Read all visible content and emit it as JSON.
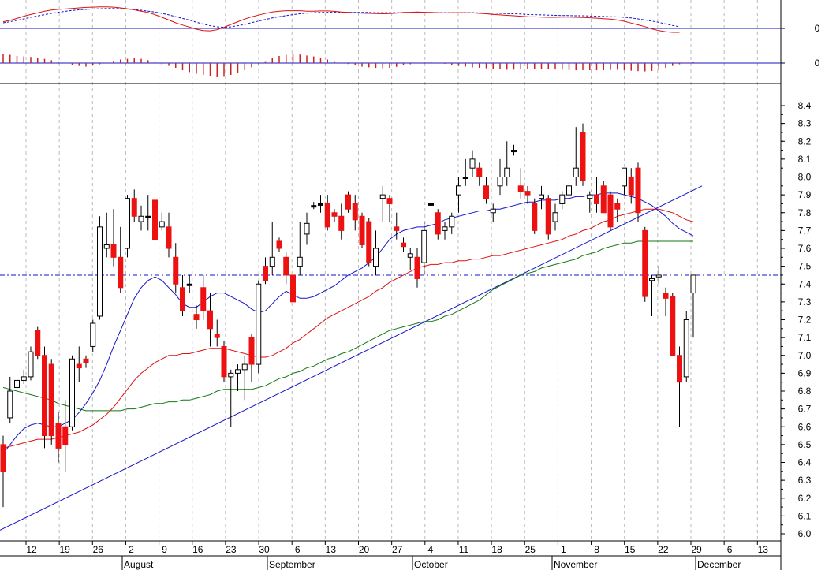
{
  "chart_data": {
    "type": "candlestick",
    "title": "",
    "colors": {
      "up_candle": "#ffffff",
      "down_candle": "#ee1111",
      "flat_candle": "#000000",
      "ma_short": "#1515c8",
      "ma_mid": "#dd1111",
      "ma_long": "#117711",
      "trendline": "#1515c8",
      "signal_line": "#1515c8",
      "macd_line": "#dd1111",
      "macd_signal": "#1515c8",
      "histogram": "#cc2222",
      "grid": "#bbbbbb"
    },
    "y_axis": {
      "ticks": [
        "6.0",
        "6.1",
        "6.2",
        "6.3",
        "6.4",
        "6.5",
        "6.6",
        "6.7",
        "6.8",
        "6.9",
        "7.0",
        "7.1",
        "7.2",
        "7.3",
        "7.4",
        "7.5",
        "7.6",
        "7.7",
        "7.8",
        "7.9",
        "8.0",
        "8.1",
        "8.2",
        "8.3",
        "8.4"
      ],
      "range": [
        5.95,
        8.45
      ]
    },
    "macd_axis_label": "0",
    "histogram_axis_label": "0",
    "x_axis": {
      "day_ticks": [
        "12",
        "19",
        "26",
        "2",
        "9",
        "16",
        "23",
        "30",
        "6",
        "13",
        "20",
        "27",
        "4",
        "11",
        "18",
        "25",
        "1",
        "8",
        "15",
        "22",
        "29",
        "6",
        "13"
      ],
      "month_labels": [
        "August",
        "September",
        "October",
        "November",
        "December"
      ]
    },
    "horizontal_level": 7.45,
    "trendline": {
      "start": 6.02,
      "end": 7.95
    },
    "candles": [
      [
        6.5,
        6.55,
        6.15,
        6.35
      ],
      [
        6.65,
        6.88,
        6.62,
        6.8
      ],
      [
        6.82,
        6.9,
        6.78,
        6.86
      ],
      [
        6.86,
        6.92,
        6.84,
        6.88
      ],
      [
        6.88,
        7.05,
        6.86,
        7.02
      ],
      [
        7.14,
        7.16,
        6.98,
        7.0
      ],
      [
        7.0,
        7.05,
        6.48,
        6.55
      ],
      [
        6.95,
        6.98,
        6.5,
        6.55
      ],
      [
        6.62,
        6.68,
        6.4,
        6.48
      ],
      [
        6.6,
        6.75,
        6.35,
        6.5
      ],
      [
        6.6,
        7.0,
        6.58,
        6.98
      ],
      [
        6.95,
        7.05,
        6.85,
        6.93
      ],
      [
        6.98,
        7.0,
        6.93,
        6.96
      ],
      [
        7.05,
        7.2,
        7.02,
        7.18
      ],
      [
        7.22,
        7.78,
        7.2,
        7.72
      ],
      [
        7.6,
        7.8,
        7.55,
        7.62
      ],
      [
        7.62,
        7.82,
        7.5,
        7.55
      ],
      [
        7.55,
        7.72,
        7.35,
        7.38
      ],
      [
        7.6,
        7.9,
        7.55,
        7.88
      ],
      [
        7.88,
        7.93,
        7.75,
        7.78
      ],
      [
        7.75,
        7.84,
        7.7,
        7.78
      ],
      [
        7.78,
        7.9,
        7.7,
        7.78
      ],
      [
        7.87,
        7.92,
        7.6,
        7.65
      ],
      [
        7.72,
        7.8,
        7.7,
        7.75
      ],
      [
        7.72,
        7.8,
        7.55,
        7.6
      ],
      [
        7.55,
        7.63,
        7.35,
        7.4
      ],
      [
        7.38,
        7.45,
        7.22,
        7.25
      ],
      [
        7.4,
        7.45,
        7.35,
        7.4
      ],
      [
        7.23,
        7.28,
        7.15,
        7.2
      ],
      [
        7.38,
        7.45,
        7.2,
        7.25
      ],
      [
        7.25,
        7.35,
        7.05,
        7.15
      ],
      [
        7.12,
        7.2,
        7.05,
        7.1
      ],
      [
        7.05,
        7.08,
        6.85,
        6.88
      ],
      [
        6.88,
        6.92,
        6.6,
        6.9
      ],
      [
        6.9,
        6.95,
        6.8,
        6.92
      ],
      [
        6.92,
        7.0,
        6.75,
        6.95
      ],
      [
        7.1,
        7.12,
        6.85,
        6.95
      ],
      [
        6.95,
        7.42,
        6.9,
        7.4
      ],
      [
        7.5,
        7.55,
        7.4,
        7.42
      ],
      [
        7.5,
        7.75,
        7.45,
        7.55
      ],
      [
        7.64,
        7.66,
        7.58,
        7.6
      ],
      [
        7.55,
        7.58,
        7.4,
        7.45
      ],
      [
        7.45,
        7.52,
        7.25,
        7.3
      ],
      [
        7.5,
        7.75,
        7.45,
        7.55
      ],
      [
        7.68,
        7.8,
        7.62,
        7.74
      ],
      [
        7.84,
        7.86,
        7.82,
        7.84
      ],
      [
        7.85,
        7.9,
        7.8,
        7.85
      ],
      [
        7.85,
        7.9,
        7.7,
        7.72
      ],
      [
        7.8,
        7.82,
        7.75,
        7.78
      ],
      [
        7.78,
        7.85,
        7.65,
        7.7
      ],
      [
        7.9,
        7.92,
        7.8,
        7.82
      ],
      [
        7.85,
        7.9,
        7.7,
        7.76
      ],
      [
        7.78,
        7.8,
        7.6,
        7.62
      ],
      [
        7.75,
        7.77,
        7.5,
        7.52
      ],
      [
        7.5,
        7.7,
        7.45,
        7.6
      ],
      [
        7.88,
        7.95,
        7.75,
        7.9
      ],
      [
        7.88,
        7.9,
        7.75,
        7.85
      ],
      [
        7.72,
        7.8,
        7.65,
        7.7
      ],
      [
        7.63,
        7.66,
        7.58,
        7.61
      ],
      [
        7.55,
        7.6,
        7.48,
        7.57
      ],
      [
        7.55,
        7.6,
        7.38,
        7.43
      ],
      [
        7.52,
        7.75,
        7.45,
        7.7
      ],
      [
        7.85,
        7.88,
        7.82,
        7.85
      ],
      [
        7.8,
        7.82,
        7.65,
        7.68
      ],
      [
        7.7,
        7.75,
        7.65,
        7.72
      ],
      [
        7.72,
        7.8,
        7.68,
        7.78
      ],
      [
        7.9,
        8.0,
        7.8,
        7.95
      ],
      [
        8.0,
        8.1,
        7.95,
        8.0
      ],
      [
        8.05,
        8.15,
        8.0,
        8.1
      ],
      [
        8.05,
        8.08,
        7.95,
        8.0
      ],
      [
        7.95,
        8.0,
        7.85,
        7.88
      ],
      [
        7.8,
        7.85,
        7.75,
        7.82
      ],
      [
        7.95,
        8.1,
        7.9,
        8.0
      ],
      [
        8.0,
        8.2,
        7.95,
        8.05
      ],
      [
        8.15,
        8.18,
        8.12,
        8.15
      ],
      [
        7.95,
        8.05,
        7.88,
        7.92
      ],
      [
        7.92,
        7.95,
        7.85,
        7.9
      ],
      [
        7.85,
        7.88,
        7.68,
        7.7
      ],
      [
        7.88,
        7.95,
        7.82,
        7.9
      ],
      [
        7.88,
        7.9,
        7.65,
        7.68
      ],
      [
        7.75,
        7.85,
        7.7,
        7.8
      ],
      [
        7.85,
        7.92,
        7.82,
        7.9
      ],
      [
        7.9,
        8.0,
        7.85,
        7.95
      ],
      [
        8.0,
        8.28,
        7.95,
        8.05
      ],
      [
        8.25,
        8.3,
        7.95,
        7.98
      ],
      [
        7.88,
        7.92,
        7.8,
        7.9
      ],
      [
        7.9,
        8.0,
        7.8,
        7.85
      ],
      [
        7.95,
        7.98,
        7.8,
        7.8
      ],
      [
        7.9,
        7.92,
        7.7,
        7.72
      ],
      [
        7.85,
        7.88,
        7.75,
        7.82
      ],
      [
        7.95,
        8.05,
        7.9,
        8.05
      ],
      [
        8.0,
        8.05,
        7.85,
        7.9
      ],
      [
        8.05,
        8.08,
        7.75,
        7.8
      ],
      [
        7.7,
        7.72,
        7.3,
        7.33
      ],
      [
        7.42,
        7.45,
        7.22,
        7.43
      ],
      [
        7.44,
        7.5,
        7.4,
        7.45
      ],
      [
        7.35,
        7.38,
        7.22,
        7.32
      ],
      [
        7.33,
        7.35,
        7.0,
        7.0
      ],
      [
        7.0,
        7.05,
        6.6,
        6.85
      ],
      [
        6.88,
        7.25,
        6.85,
        7.2
      ],
      [
        7.35,
        7.45,
        7.1,
        7.45
      ]
    ],
    "ma_short": [
      6.45,
      6.5,
      6.55,
      6.59,
      6.61,
      6.62,
      6.61,
      6.6,
      6.6,
      6.62,
      6.64,
      6.68,
      6.73,
      6.79,
      6.86,
      6.95,
      7.05,
      7.14,
      7.23,
      7.32,
      7.38,
      7.42,
      7.44,
      7.42,
      7.38,
      7.34,
      7.29,
      7.27,
      7.27,
      7.3,
      7.33,
      7.35,
      7.35,
      7.33,
      7.31,
      7.29,
      7.26,
      7.24,
      7.25,
      7.29,
      7.33,
      7.36,
      7.34,
      7.32,
      7.32,
      7.33,
      7.35,
      7.37,
      7.39,
      7.42,
      7.45,
      7.47,
      7.49,
      7.52,
      7.55,
      7.6,
      7.65,
      7.68,
      7.7,
      7.71,
      7.72,
      7.72,
      7.73,
      7.74,
      7.76,
      7.77,
      7.78,
      7.79,
      7.8,
      7.81,
      7.81,
      7.82,
      7.82,
      7.83,
      7.84,
      7.85,
      7.86,
      7.86,
      7.87,
      7.87,
      7.87,
      7.88,
      7.88,
      7.89,
      7.89,
      7.9,
      7.9,
      7.91,
      7.91,
      7.91,
      7.9,
      7.89,
      7.88,
      7.86,
      7.84,
      7.81,
      7.78,
      7.74,
      7.71,
      7.69,
      7.67
    ],
    "ma_mid": [
      6.48,
      6.49,
      6.5,
      6.51,
      6.52,
      6.53,
      6.53,
      6.53,
      6.54,
      6.55,
      6.56,
      6.57,
      6.59,
      6.61,
      6.64,
      6.67,
      6.71,
      6.76,
      6.81,
      6.86,
      6.9,
      6.93,
      6.96,
      6.98,
      7.0,
      7.0,
      7.01,
      7.01,
      7.02,
      7.03,
      7.04,
      7.04,
      7.04,
      7.03,
      7.02,
      7.01,
      7.0,
      6.99,
      6.99,
      7.0,
      7.02,
      7.04,
      7.07,
      7.09,
      7.12,
      7.15,
      7.18,
      7.21,
      7.23,
      7.25,
      7.27,
      7.29,
      7.31,
      7.33,
      7.36,
      7.38,
      7.41,
      7.43,
      7.45,
      7.47,
      7.49,
      7.5,
      7.51,
      7.51,
      7.52,
      7.52,
      7.53,
      7.53,
      7.54,
      7.54,
      7.55,
      7.56,
      7.56,
      7.57,
      7.58,
      7.59,
      7.6,
      7.61,
      7.62,
      7.63,
      7.64,
      7.65,
      7.67,
      7.68,
      7.7,
      7.71,
      7.73,
      7.75,
      7.76,
      7.78,
      7.79,
      7.8,
      7.81,
      7.82,
      7.82,
      7.82,
      7.81,
      7.8,
      7.78,
      7.76,
      7.75
    ],
    "ma_long": [
      6.82,
      6.81,
      6.8,
      6.79,
      6.78,
      6.77,
      6.76,
      6.75,
      6.73,
      6.72,
      6.71,
      6.7,
      6.69,
      6.69,
      6.69,
      6.69,
      6.69,
      6.69,
      6.7,
      6.7,
      6.71,
      6.72,
      6.73,
      6.73,
      6.74,
      6.74,
      6.75,
      6.75,
      6.76,
      6.77,
      6.78,
      6.8,
      6.81,
      6.81,
      6.81,
      6.81,
      6.81,
      6.82,
      6.83,
      6.85,
      6.87,
      6.88,
      6.9,
      6.91,
      6.93,
      6.94,
      6.96,
      6.98,
      6.99,
      7.01,
      7.02,
      7.04,
      7.06,
      7.08,
      7.1,
      7.12,
      7.14,
      7.15,
      7.16,
      7.17,
      7.18,
      7.19,
      7.19,
      7.2,
      7.22,
      7.23,
      7.25,
      7.27,
      7.29,
      7.31,
      7.34,
      7.37,
      7.39,
      7.41,
      7.43,
      7.45,
      7.46,
      7.47,
      7.49,
      7.5,
      7.51,
      7.52,
      7.53,
      7.54,
      7.56,
      7.57,
      7.58,
      7.6,
      7.61,
      7.62,
      7.63,
      7.63,
      7.64,
      7.64,
      7.64,
      7.64,
      7.64,
      7.64,
      7.64,
      7.64,
      7.64
    ],
    "macd_line": [
      0.3,
      0.36,
      0.45,
      0.55,
      0.63,
      0.7,
      0.78,
      0.83,
      0.86,
      0.88,
      0.9,
      0.93,
      0.95,
      0.96,
      0.97,
      0.97,
      0.96,
      0.93,
      0.89,
      0.84,
      0.78,
      0.72,
      0.62,
      0.5,
      0.38,
      0.25,
      0.15,
      0.06,
      -0.04,
      -0.1,
      -0.11,
      -0.06,
      0.05,
      0.18,
      0.3,
      0.42,
      0.52,
      0.6,
      0.68,
      0.74,
      0.78,
      0.8,
      0.8,
      0.8,
      0.78,
      0.78,
      0.79,
      0.79,
      0.77,
      0.74,
      0.72,
      0.7,
      0.69,
      0.68,
      0.67,
      0.66,
      0.67,
      0.69,
      0.72,
      0.73,
      0.74,
      0.73,
      0.72,
      0.71,
      0.7,
      0.71,
      0.71,
      0.71,
      0.7,
      0.68,
      0.66,
      0.63,
      0.61,
      0.59,
      0.57,
      0.55,
      0.53,
      0.52,
      0.51,
      0.5,
      0.5,
      0.51,
      0.51,
      0.5,
      0.49,
      0.48,
      0.46,
      0.44,
      0.42,
      0.38,
      0.32,
      0.24,
      0.16,
      0.08,
      -0.02,
      -0.1,
      -0.15,
      -0.18,
      -0.18
    ],
    "macd_signal": [
      0.25,
      0.3,
      0.36,
      0.43,
      0.5,
      0.56,
      0.62,
      0.68,
      0.73,
      0.77,
      0.81,
      0.84,
      0.86,
      0.88,
      0.89,
      0.9,
      0.9,
      0.89,
      0.87,
      0.85,
      0.82,
      0.78,
      0.74,
      0.68,
      0.61,
      0.53,
      0.45,
      0.37,
      0.28,
      0.19,
      0.12,
      0.07,
      0.05,
      0.07,
      0.12,
      0.18,
      0.26,
      0.33,
      0.4,
      0.47,
      0.53,
      0.58,
      0.62,
      0.66,
      0.69,
      0.71,
      0.72,
      0.73,
      0.73,
      0.73,
      0.73,
      0.72,
      0.72,
      0.72,
      0.71,
      0.71,
      0.71,
      0.71,
      0.71,
      0.71,
      0.72,
      0.72,
      0.71,
      0.71,
      0.71,
      0.71,
      0.71,
      0.71,
      0.71,
      0.7,
      0.69,
      0.69,
      0.68,
      0.67,
      0.66,
      0.65,
      0.63,
      0.62,
      0.61,
      0.6,
      0.59,
      0.58,
      0.58,
      0.57,
      0.57,
      0.56,
      0.55,
      0.54,
      0.53,
      0.52,
      0.5,
      0.47,
      0.43,
      0.38,
      0.33,
      0.27,
      0.2,
      0.13,
      0.08
    ],
    "histogram": [
      0.4,
      0.35,
      0.3,
      0.28,
      0.26,
      0.22,
      0.18,
      0.12,
      0.05,
      -0.02,
      -0.08,
      -0.12,
      -0.15,
      -0.1,
      -0.05,
      0.02,
      0.1,
      0.15,
      0.18,
      0.2,
      0.18,
      0.12,
      0.05,
      -0.05,
      -0.12,
      -0.2,
      -0.3,
      -0.38,
      -0.45,
      -0.5,
      -0.55,
      -0.6,
      -0.58,
      -0.5,
      -0.4,
      -0.3,
      -0.18,
      -0.05,
      0.08,
      0.2,
      0.3,
      0.35,
      0.38,
      0.36,
      0.32,
      0.28,
      0.22,
      0.15,
      0.08,
      0.02,
      -0.04,
      -0.1,
      -0.15,
      -0.18,
      -0.2,
      -0.22,
      -0.2,
      -0.16,
      -0.1,
      -0.05,
      0.02,
      0.06,
      0.05,
      0.02,
      -0.03,
      -0.08,
      -0.12,
      -0.15,
      -0.18,
      -0.2,
      -0.22,
      -0.25,
      -0.27,
      -0.28,
      -0.28,
      -0.27,
      -0.26,
      -0.25,
      -0.25,
      -0.26,
      -0.27,
      -0.28,
      -0.29,
      -0.3,
      -0.3,
      -0.3,
      -0.3,
      -0.3,
      -0.29,
      -0.28,
      -0.3,
      -0.32,
      -0.34,
      -0.35,
      -0.33,
      -0.28,
      -0.2,
      -0.12,
      -0.05,
      0.02,
      0.05
    ]
  }
}
